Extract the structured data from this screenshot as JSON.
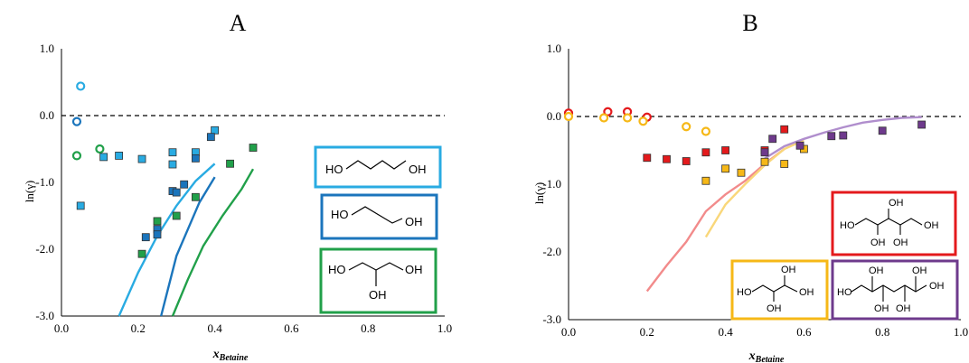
{
  "chart_data": [
    {
      "type": "scatter",
      "title": "A",
      "xlabel": "x",
      "xlabel_sub": "Betaine",
      "ylabel": "ln(γ)",
      "xlim": [
        0.0,
        1.0
      ],
      "ylim": [
        -3.0,
        1.0
      ],
      "xticks": [
        "0.0",
        "0.2",
        "0.4",
        "0.6",
        "0.8",
        "1.0"
      ],
      "yticks": [
        "1.0",
        "0.0",
        "-1.0",
        "-2.0",
        "-3.0"
      ],
      "reference_line": {
        "y": 0.0,
        "style": "dashed"
      },
      "series": [
        {
          "color": "#29abe2",
          "marker": "circle-open",
          "x": [
            0.05
          ],
          "y": [
            0.44
          ]
        },
        {
          "color": "#1b75bc",
          "marker": "circle-open",
          "x": [
            0.04
          ],
          "y": [
            -0.09
          ]
        },
        {
          "color": "#21a04a",
          "marker": "circle-open",
          "x": [
            0.04,
            0.1
          ],
          "y": [
            -0.6,
            -0.5
          ]
        },
        {
          "color": "#29abe2",
          "marker": "square",
          "x": [
            0.05,
            0.11,
            0.15,
            0.21,
            0.29,
            0.29,
            0.35,
            0.4
          ],
          "y": [
            -1.35,
            -0.62,
            -0.6,
            -0.65,
            -0.55,
            -0.73,
            -0.55,
            -0.22
          ]
        },
        {
          "color": "#1b75bc",
          "marker": "square",
          "x": [
            0.22,
            0.25,
            0.25,
            0.29,
            0.3,
            0.32,
            0.35,
            0.39
          ],
          "y": [
            -1.82,
            -1.7,
            -1.78,
            -1.13,
            -1.15,
            -1.03,
            -0.64,
            -0.32
          ]
        },
        {
          "color": "#21a04a",
          "marker": "square",
          "x": [
            0.21,
            0.25,
            0.3,
            0.35,
            0.44,
            0.5
          ],
          "y": [
            -2.07,
            -1.58,
            -1.5,
            -1.22,
            -0.72,
            -0.48
          ]
        },
        {
          "color": "#29abe2",
          "marker": "line",
          "x": [
            0.15,
            0.2,
            0.25,
            0.3,
            0.35,
            0.4
          ],
          "y": [
            -3.0,
            -2.35,
            -1.8,
            -1.35,
            -0.98,
            -0.72
          ]
        },
        {
          "color": "#1b75bc",
          "marker": "line",
          "x": [
            0.26,
            0.28,
            0.3,
            0.33,
            0.36,
            0.4
          ],
          "y": [
            -3.0,
            -2.55,
            -2.1,
            -1.7,
            -1.3,
            -0.92
          ]
        },
        {
          "color": "#21a04a",
          "marker": "line",
          "x": [
            0.29,
            0.33,
            0.37,
            0.42,
            0.47,
            0.5
          ],
          "y": [
            -3.0,
            -2.45,
            -1.95,
            -1.5,
            -1.1,
            -0.8
          ]
        }
      ],
      "legend_boxes": [
        {
          "color": "#29abe2",
          "labels": [
            "HO",
            "OH"
          ]
        },
        {
          "color": "#1b75bc",
          "labels": [
            "HO",
            "OH"
          ]
        },
        {
          "color": "#21a04a",
          "labels": [
            "HO",
            "OH",
            "OH"
          ]
        }
      ]
    },
    {
      "type": "scatter",
      "title": "B",
      "xlabel": "x",
      "xlabel_sub": "Betaine",
      "ylabel": "ln(γ)",
      "xlim": [
        0.0,
        1.0
      ],
      "ylim": [
        -3.0,
        1.0
      ],
      "xticks": [
        "0.0",
        "0.2",
        "0.4",
        "0.6",
        "0.8",
        "1.0"
      ],
      "yticks": [
        "1.0",
        "0.0",
        "-1.0",
        "-2.0",
        "-3.0"
      ],
      "reference_line": {
        "y": 0.0,
        "style": "dashed"
      },
      "series": [
        {
          "color": "#e41a1c",
          "marker": "circle-open",
          "x": [
            0.0,
            0.1,
            0.15,
            0.2
          ],
          "y": [
            0.05,
            0.07,
            0.07,
            -0.01
          ]
        },
        {
          "color": "#f6b817",
          "marker": "circle-open",
          "x": [
            0.0,
            0.09,
            0.15,
            0.19,
            0.3,
            0.35
          ],
          "y": [
            0.0,
            -0.02,
            -0.02,
            -0.07,
            -0.15,
            -0.22
          ]
        },
        {
          "color": "#e41a1c",
          "marker": "square",
          "x": [
            0.2,
            0.25,
            0.3,
            0.35,
            0.4,
            0.5,
            0.55
          ],
          "y": [
            -0.61,
            -0.63,
            -0.66,
            -0.53,
            -0.5,
            -0.5,
            -0.19
          ]
        },
        {
          "color": "#f6b817",
          "marker": "square",
          "x": [
            0.35,
            0.4,
            0.44,
            0.5,
            0.55,
            0.6
          ],
          "y": [
            -0.95,
            -0.77,
            -0.83,
            -0.67,
            -0.7,
            -0.48
          ]
        },
        {
          "color": "#6e3a8c",
          "marker": "square",
          "x": [
            0.5,
            0.52,
            0.59,
            0.67,
            0.7,
            0.8,
            0.9
          ],
          "y": [
            -0.53,
            -0.33,
            -0.43,
            -0.29,
            -0.28,
            -0.21,
            -0.12
          ]
        },
        {
          "color": "#f28b8b",
          "marker": "line",
          "x": [
            0.2,
            0.25,
            0.3,
            0.35,
            0.4,
            0.45,
            0.5,
            0.55
          ],
          "y": [
            -2.58,
            -2.2,
            -1.85,
            -1.4,
            -1.15,
            -0.95,
            -0.7,
            -0.48
          ]
        },
        {
          "color": "#f9d77a",
          "marker": "line",
          "x": [
            0.35,
            0.4,
            0.45,
            0.5,
            0.55,
            0.6
          ],
          "y": [
            -1.78,
            -1.3,
            -1.0,
            -0.72,
            -0.48,
            -0.35
          ]
        },
        {
          "color": "#b08ecd",
          "marker": "line",
          "x": [
            0.5,
            0.55,
            0.6,
            0.65,
            0.7,
            0.75,
            0.8,
            0.85,
            0.9
          ],
          "y": [
            -0.62,
            -0.44,
            -0.33,
            -0.24,
            -0.16,
            -0.09,
            -0.05,
            -0.02,
            -0.01
          ]
        }
      ],
      "legend_boxes": [
        {
          "color": "#e41a1c",
          "labels": [
            "OH",
            "HO",
            "OH",
            "OH",
            "OH"
          ]
        },
        {
          "color": "#f6b817",
          "labels": [
            "OH",
            "HO",
            "OH",
            "OH"
          ]
        },
        {
          "color": "#6e3a8c",
          "labels": [
            "OH",
            "OH",
            "HO",
            "OH",
            "OH",
            "OH"
          ]
        }
      ]
    }
  ]
}
